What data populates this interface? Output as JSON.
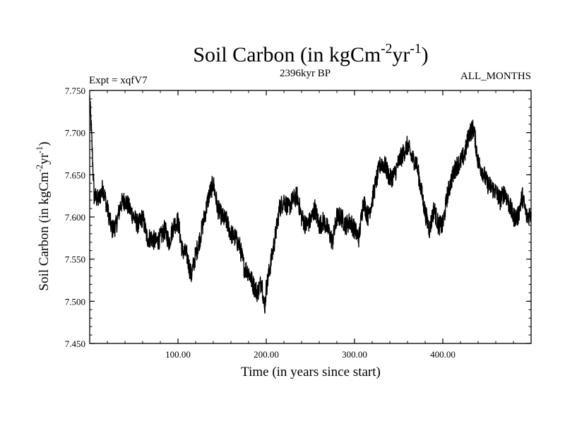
{
  "chart_data": {
    "type": "line",
    "title": {
      "main": "Soil Carbon (in kgCm",
      "sup1": "-2",
      "mid": "yr",
      "sup2": "-1",
      "end": ")"
    },
    "subtitle_left": "Expt = xqfV7",
    "subtitle_center": "2396kyr BP",
    "subtitle_right": "ALL_MONTHS",
    "xlabel": "Time (in years since start)",
    "ylabel": {
      "main": "Soil Carbon (in kgCm",
      "sup1": "-2",
      "mid": "yr",
      "sup2": "-1",
      "end": ")"
    },
    "xlim": [
      0,
      500
    ],
    "ylim": [
      7.45,
      7.75
    ],
    "xticks": [
      100,
      200,
      300,
      400
    ],
    "xtick_labels": [
      "100.00",
      "200.00",
      "300.00",
      "400.00"
    ],
    "yticks": [
      7.45,
      7.5,
      7.55,
      7.6,
      7.65,
      7.7,
      7.75
    ],
    "ytick_labels": [
      "7.450",
      "7.500",
      "7.550",
      "7.600",
      "7.650",
      "7.700",
      "7.750"
    ],
    "series": [
      {
        "name": "Soil Carbon",
        "noise_amplitude": 0.012,
        "anchors": [
          [
            0,
            7.74
          ],
          [
            2,
            7.7
          ],
          [
            5,
            7.625
          ],
          [
            10,
            7.62
          ],
          [
            15,
            7.635
          ],
          [
            20,
            7.61
          ],
          [
            25,
            7.585
          ],
          [
            30,
            7.59
          ],
          [
            35,
            7.615
          ],
          [
            40,
            7.62
          ],
          [
            45,
            7.61
          ],
          [
            50,
            7.6
          ],
          [
            55,
            7.59
          ],
          [
            60,
            7.6
          ],
          [
            65,
            7.575
          ],
          [
            70,
            7.575
          ],
          [
            75,
            7.57
          ],
          [
            80,
            7.575
          ],
          [
            85,
            7.585
          ],
          [
            90,
            7.57
          ],
          [
            95,
            7.59
          ],
          [
            100,
            7.595
          ],
          [
            105,
            7.56
          ],
          [
            110,
            7.555
          ],
          [
            115,
            7.53
          ],
          [
            120,
            7.555
          ],
          [
            125,
            7.575
          ],
          [
            130,
            7.6
          ],
          [
            135,
            7.625
          ],
          [
            140,
            7.64
          ],
          [
            145,
            7.61
          ],
          [
            150,
            7.6
          ],
          [
            155,
            7.595
          ],
          [
            160,
            7.58
          ],
          [
            165,
            7.575
          ],
          [
            170,
            7.565
          ],
          [
            175,
            7.54
          ],
          [
            180,
            7.535
          ],
          [
            185,
            7.52
          ],
          [
            190,
            7.51
          ],
          [
            195,
            7.525
          ],
          [
            198,
            7.49
          ],
          [
            200,
            7.515
          ],
          [
            205,
            7.545
          ],
          [
            210,
            7.575
          ],
          [
            215,
            7.61
          ],
          [
            220,
            7.62
          ],
          [
            225,
            7.61
          ],
          [
            230,
            7.62
          ],
          [
            235,
            7.625
          ],
          [
            240,
            7.6
          ],
          [
            245,
            7.59
          ],
          [
            250,
            7.595
          ],
          [
            255,
            7.61
          ],
          [
            260,
            7.59
          ],
          [
            265,
            7.595
          ],
          [
            270,
            7.585
          ],
          [
            275,
            7.57
          ],
          [
            280,
            7.6
          ],
          [
            285,
            7.6
          ],
          [
            290,
            7.59
          ],
          [
            295,
            7.595
          ],
          [
            300,
            7.585
          ],
          [
            305,
            7.575
          ],
          [
            310,
            7.62
          ],
          [
            315,
            7.6
          ],
          [
            320,
            7.62
          ],
          [
            325,
            7.645
          ],
          [
            330,
            7.665
          ],
          [
            335,
            7.66
          ],
          [
            340,
            7.645
          ],
          [
            345,
            7.65
          ],
          [
            350,
            7.665
          ],
          [
            355,
            7.675
          ],
          [
            360,
            7.685
          ],
          [
            365,
            7.67
          ],
          [
            370,
            7.665
          ],
          [
            375,
            7.635
          ],
          [
            380,
            7.605
          ],
          [
            385,
            7.585
          ],
          [
            390,
            7.61
          ],
          [
            395,
            7.59
          ],
          [
            400,
            7.59
          ],
          [
            405,
            7.625
          ],
          [
            410,
            7.645
          ],
          [
            415,
            7.66
          ],
          [
            420,
            7.665
          ],
          [
            425,
            7.675
          ],
          [
            430,
            7.7
          ],
          [
            435,
            7.705
          ],
          [
            440,
            7.665
          ],
          [
            445,
            7.655
          ],
          [
            450,
            7.64
          ],
          [
            455,
            7.635
          ],
          [
            460,
            7.63
          ],
          [
            465,
            7.62
          ],
          [
            470,
            7.63
          ],
          [
            475,
            7.615
          ],
          [
            480,
            7.6
          ],
          [
            485,
            7.6
          ],
          [
            490,
            7.625
          ],
          [
            495,
            7.6
          ],
          [
            500,
            7.605
          ]
        ]
      }
    ]
  }
}
